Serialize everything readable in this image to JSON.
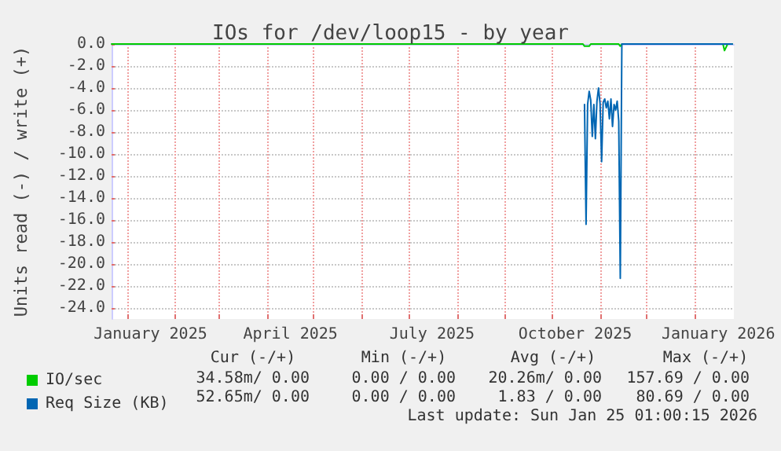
{
  "chart_data": {
    "type": "line",
    "title": "IOs for /dev/loop15 - by year",
    "ylabel": "Units read (-) / write (+)",
    "xlim": [
      "2024-12-22",
      "2026-01-26"
    ],
    "ylim": [
      -25,
      0
    ],
    "xticks": [
      {
        "value": "2025-01-01",
        "label": null
      },
      {
        "value": "2025-02-01",
        "label": null
      },
      {
        "value": "2025-03-01",
        "label": null
      },
      {
        "value": "2025-04-01",
        "label": null
      },
      {
        "value": "2025-05-01",
        "label": null
      },
      {
        "value": "2025-06-01",
        "label": null
      },
      {
        "value": "2025-07-01",
        "label": null
      },
      {
        "value": "2025-08-01",
        "label": null
      },
      {
        "value": "2025-09-01",
        "label": null
      },
      {
        "value": "2025-10-01",
        "label": null
      },
      {
        "value": "2025-11-01",
        "label": null
      },
      {
        "value": "2025-12-01",
        "label": null
      },
      {
        "value": "2026-01-01",
        "label": null
      },
      {
        "value": "2025-01-16",
        "label": "January 2025"
      },
      {
        "value": "2025-04-16",
        "label": "April 2025"
      },
      {
        "value": "2025-07-16",
        "label": "July 2025"
      },
      {
        "value": "2025-10-16",
        "label": "October 2025"
      },
      {
        "value": "2026-01-16",
        "label": "January 2026"
      }
    ],
    "yticks": [
      {
        "value": 0,
        "label": "0.0"
      },
      {
        "value": -2,
        "label": "-2.0"
      },
      {
        "value": -4,
        "label": "-4.0"
      },
      {
        "value": -6,
        "label": "-6.0"
      },
      {
        "value": -8,
        "label": "-8.0"
      },
      {
        "value": -10,
        "label": "-10.0"
      },
      {
        "value": -12,
        "label": "-12.0"
      },
      {
        "value": -14,
        "label": "-14.0"
      },
      {
        "value": -16,
        "label": "-16.0"
      },
      {
        "value": -18,
        "label": "-18.0"
      },
      {
        "value": -20,
        "label": "-20.0"
      },
      {
        "value": -22,
        "label": "-22.0"
      },
      {
        "value": -24,
        "label": "-24.0"
      }
    ],
    "grid": true,
    "legend": "bottom left",
    "marker": "none",
    "line_style": "solid",
    "series": [
      {
        "name": "IO/sec",
        "color": "#00cc00",
        "x": [
          "2024-12-22",
          "2025-10-21",
          "2025-10-22",
          "2025-10-25",
          "2025-10-26",
          "2025-11-13",
          "2025-11-14",
          "2025-11-15",
          "2026-01-19",
          "2026-01-20",
          "2026-01-22",
          "2026-01-25"
        ],
        "values": [
          0,
          0,
          -0.2,
          -0.2,
          0,
          0,
          -0.2,
          0,
          0,
          -0.6,
          0,
          0
        ]
      },
      {
        "name": "Req Size (KB)",
        "color": "#0066b3",
        "x": [
          "2025-10-22",
          "2025-10-23",
          "2025-10-24",
          "2025-10-25",
          "2025-10-26",
          "2025-10-27",
          "2025-10-28",
          "2025-10-29",
          "2025-10-30",
          "2025-10-31",
          "2025-11-01",
          "2025-11-02",
          "2025-11-03",
          "2025-11-04",
          "2025-11-05",
          "2025-11-06",
          "2025-11-07",
          "2025-11-08",
          "2025-11-09",
          "2025-11-10",
          "2025-11-11",
          "2025-11-12",
          "2025-11-13",
          "2025-11-14",
          "2025-11-15",
          "2026-01-25"
        ],
        "values": [
          -5.5,
          -16.4,
          -5.5,
          -4.3,
          -5.1,
          -8.4,
          -5.5,
          -8.6,
          -5.2,
          -4.0,
          -5.4,
          -10.7,
          -5.3,
          -5.0,
          -5.8,
          -5.2,
          -6.8,
          -5.0,
          -7.5,
          -5.5,
          -6.0,
          -5.2,
          -7.0,
          -21.3,
          0,
          0
        ]
      }
    ],
    "annotations": [
      "Cur (-/+)",
      "Min (-/+)",
      "Avg (-/+)",
      "Max (-/+)",
      "34.58m/ 0.00",
      "0.00 / 0.00",
      "20.26m/ 0.00",
      "157.69 / 0.00",
      "52.65m/ 0.00",
      "0.00 / 0.00",
      "1.83 / 0.00",
      "80.69 / 0.00",
      "Last update: Sun Jan 25 01:00:15 2026"
    ]
  }
}
